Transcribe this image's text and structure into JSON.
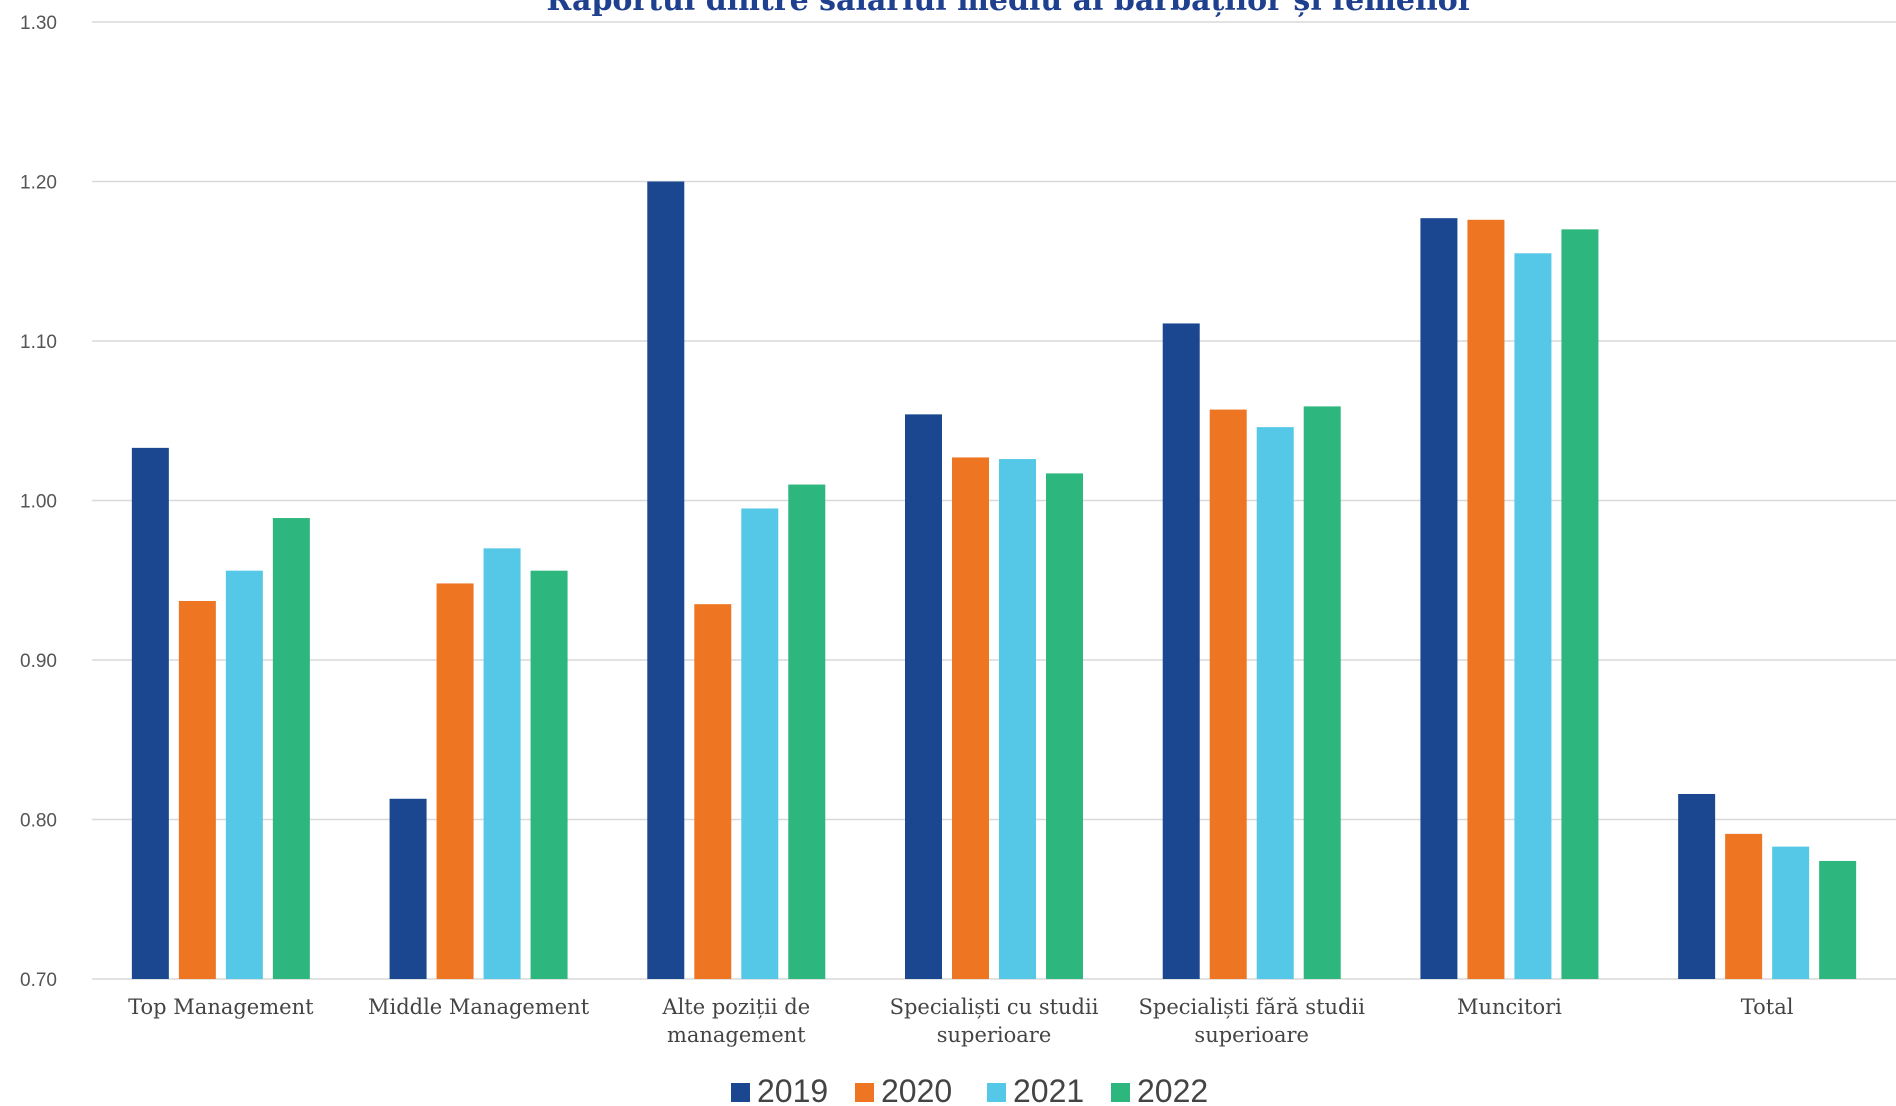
{
  "chart_data": {
    "type": "bar",
    "title": "Raportul dintre salariul mediu al bărbaților și femeilor",
    "xlabel": "",
    "ylabel": "",
    "ylim": [
      0.7,
      1.3
    ],
    "yticks": [
      "0.70",
      "0.80",
      "0.90",
      "1.00",
      "1.10",
      "1.20",
      "1.30"
    ],
    "grid": true,
    "legend_position": "bottom",
    "categories": [
      [
        "Top Management"
      ],
      [
        "Middle Management"
      ],
      [
        "Alte poziții de",
        "management"
      ],
      [
        "Specialiști cu studii",
        "superioare"
      ],
      [
        "Specialiști fără studii",
        "superioare"
      ],
      [
        "Muncitori"
      ],
      [
        "Total"
      ]
    ],
    "series": [
      {
        "name": "2019",
        "color": "#1a4790",
        "values": [
          1.033,
          0.813,
          1.2,
          1.054,
          1.111,
          1.177,
          0.816
        ]
      },
      {
        "name": "2020",
        "color": "#ee7623",
        "values": [
          0.937,
          0.948,
          0.935,
          1.027,
          1.057,
          1.176,
          0.791
        ]
      },
      {
        "name": "2021",
        "color": "#55c8e8",
        "values": [
          0.956,
          0.97,
          0.995,
          1.026,
          1.046,
          1.155,
          0.783
        ]
      },
      {
        "name": "2022",
        "color": "#2db67d",
        "values": [
          0.989,
          0.956,
          1.01,
          1.017,
          1.059,
          1.17,
          0.774
        ]
      }
    ]
  }
}
